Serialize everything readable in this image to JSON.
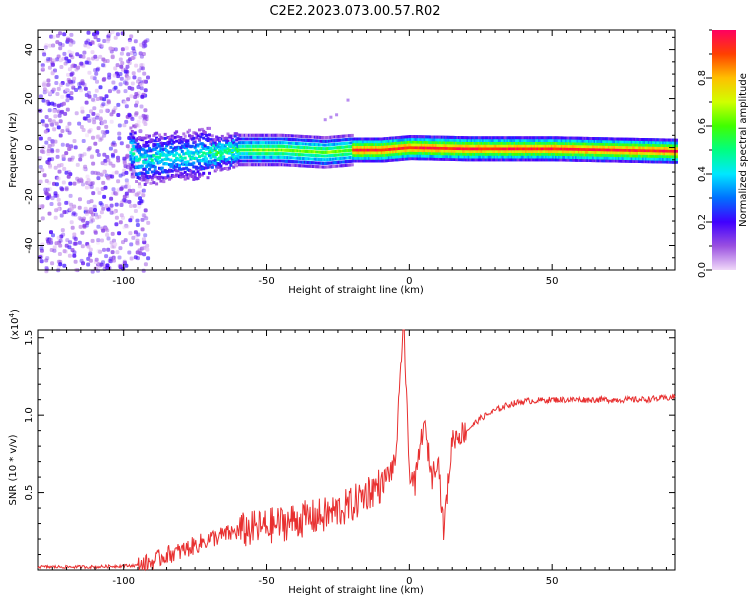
{
  "title": "C2E2.2023.073.00.57.R02",
  "chart_data": [
    {
      "type": "heatmap",
      "xlabel": "Height of straight line (km)",
      "ylabel": "Frequency (Hz)",
      "xlim": [
        -130,
        93
      ],
      "ylim": [
        -50,
        48
      ],
      "x_ticks": [
        -100,
        -50,
        0,
        50
      ],
      "x_tick_labels": [
        "-100",
        "-50",
        "0",
        "50"
      ],
      "y_ticks": [
        -40,
        -20,
        0,
        20,
        40
      ],
      "y_tick_labels": [
        "-40",
        "-20",
        "0",
        "20",
        "40"
      ],
      "colorbar": {
        "label": "Normalized spectral amplitude",
        "range": [
          0,
          1
        ],
        "ticks": [
          0.0,
          0.2,
          0.4,
          0.6,
          0.8
        ],
        "tick_labels": [
          "0.0",
          "0.2",
          "0.4",
          "0.6",
          "0.8"
        ],
        "colormap": [
          "#f0d8f8",
          "#9a50e0",
          "#4000ff",
          "#0070ff",
          "#00e8ff",
          "#00ff80",
          "#40ff00",
          "#d0ff00",
          "#ffc000",
          "#ff4000",
          "#ff0060"
        ]
      },
      "band_center_hz": [
        {
          "x": -96,
          "y": -5
        },
        {
          "x": -85,
          "y": -4
        },
        {
          "x": -75,
          "y": -3
        },
        {
          "x": -60,
          "y": -1
        },
        {
          "x": -45,
          "y": -1
        },
        {
          "x": -30,
          "y": -2
        },
        {
          "x": -20,
          "y": -1
        },
        {
          "x": -10,
          "y": -1
        },
        {
          "x": 0,
          "y": 0
        },
        {
          "x": 20,
          "y": -0.5
        },
        {
          "x": 50,
          "y": -0.5
        },
        {
          "x": 93,
          "y": -1.5
        }
      ],
      "noise_region_x": [
        -130,
        -95
      ]
    },
    {
      "type": "line",
      "xlabel": "Height of straight line (km)",
      "ylabel": "SNR (10 * v/v)",
      "y_multiplier": "(x10",
      "y_multiplier_exp": "4",
      "y_multiplier_close": ")",
      "xlim": [
        -130,
        93
      ],
      "ylim": [
        0,
        1.55
      ],
      "x_ticks": [
        -100,
        -50,
        0,
        50
      ],
      "x_tick_labels": [
        "-100",
        "-50",
        "0",
        "50"
      ],
      "y_ticks": [
        0.5,
        1.0,
        1.5
      ],
      "y_tick_labels": [
        "0.5",
        "1.0",
        "1.5"
      ],
      "line_color": "#e83030",
      "x": [
        -130,
        -110,
        -95,
        -90,
        -85,
        -80,
        -70,
        -60,
        -50,
        -40,
        -30,
        -20,
        -15,
        -10,
        -5,
        -2,
        0,
        2,
        5,
        8,
        10,
        12,
        15,
        20,
        25,
        30,
        35,
        40,
        50,
        60,
        70,
        80,
        90,
        93
      ],
      "y": [
        0.02,
        0.02,
        0.03,
        0.05,
        0.1,
        0.12,
        0.2,
        0.25,
        0.28,
        0.32,
        0.35,
        0.42,
        0.5,
        0.55,
        0.68,
        1.55,
        0.65,
        0.55,
        0.95,
        0.6,
        0.75,
        0.25,
        0.85,
        0.9,
        0.98,
        1.03,
        1.07,
        1.09,
        1.1,
        1.1,
        1.1,
        1.1,
        1.11,
        1.12
      ]
    }
  ]
}
